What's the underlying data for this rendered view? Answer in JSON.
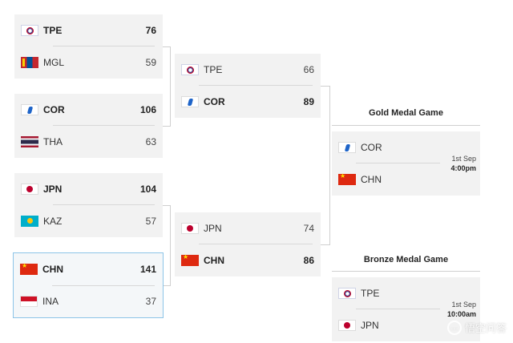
{
  "quarterfinals": [
    {
      "id": "qf1",
      "teams": [
        {
          "code": "TPE",
          "score": "76",
          "flag": "tpe-flag",
          "winner": true
        },
        {
          "code": "MGL",
          "score": "59",
          "flag": "mgl-flag",
          "winner": false
        }
      ]
    },
    {
      "id": "qf2",
      "teams": [
        {
          "code": "COR",
          "score": "106",
          "flag": "cor-flag",
          "winner": true
        },
        {
          "code": "THA",
          "score": "63",
          "flag": "tha-flag",
          "winner": false
        }
      ]
    },
    {
      "id": "qf3",
      "teams": [
        {
          "code": "JPN",
          "score": "104",
          "flag": "jpn-flag",
          "winner": true
        },
        {
          "code": "KAZ",
          "score": "57",
          "flag": "kaz-flag",
          "winner": false
        }
      ]
    },
    {
      "id": "qf4",
      "highlighted": true,
      "teams": [
        {
          "code": "CHN",
          "score": "141",
          "flag": "chn-flag",
          "winner": true
        },
        {
          "code": "INA",
          "score": "37",
          "flag": "ina-flag",
          "winner": false
        }
      ]
    }
  ],
  "semifinals": [
    {
      "id": "sf1",
      "teams": [
        {
          "code": "TPE",
          "score": "66",
          "flag": "tpe-flag",
          "winner": false
        },
        {
          "code": "COR",
          "score": "89",
          "flag": "cor-flag",
          "winner": true
        }
      ]
    },
    {
      "id": "sf2",
      "teams": [
        {
          "code": "JPN",
          "score": "74",
          "flag": "jpn-flag",
          "winner": false
        },
        {
          "code": "CHN",
          "score": "86",
          "flag": "chn-flag",
          "winner": true
        }
      ]
    }
  ],
  "gold": {
    "title": "Gold Medal Game",
    "date": "1st Sep",
    "time": "4:00pm",
    "teams": [
      {
        "code": "COR",
        "flag": "cor-flag"
      },
      {
        "code": "CHN",
        "flag": "chn-flag"
      }
    ]
  },
  "bronze": {
    "title": "Bronze Medal Game",
    "date": "1st Sep",
    "time": "10:00am",
    "teams": [
      {
        "code": "TPE",
        "flag": "tpe-flag"
      },
      {
        "code": "JPN",
        "flag": "jpn-flag"
      }
    ]
  },
  "watermark": "悟空问答",
  "colors": {
    "card": "#f2f2f2",
    "highlight_border": "#8cc4e8",
    "connector": "#cfcfcf"
  }
}
